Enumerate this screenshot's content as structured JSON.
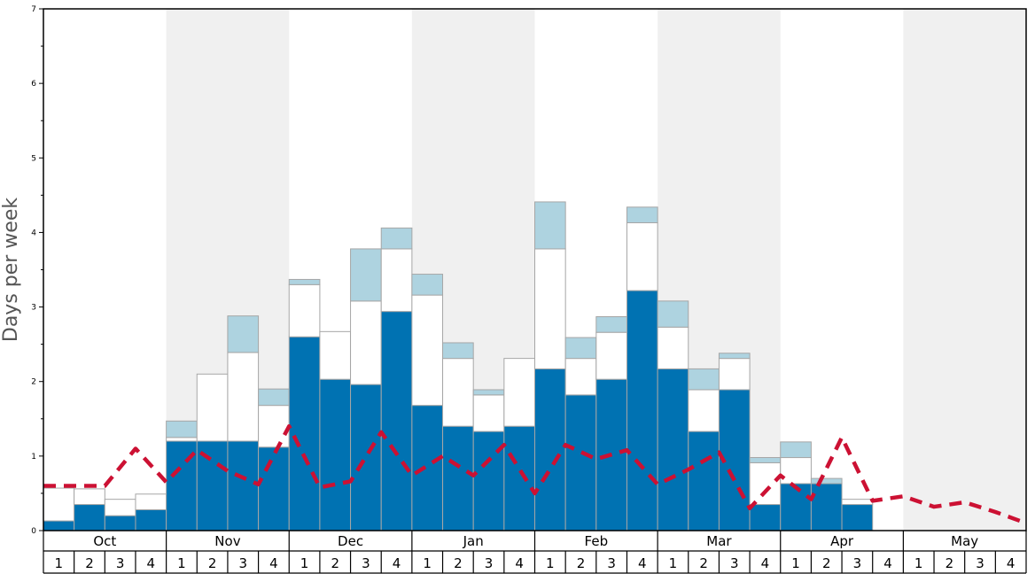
{
  "chart_data": {
    "type": "bar",
    "ylabel": "Days per week",
    "ylim": [
      0,
      7
    ],
    "yticks": [
      "0",
      "1",
      "2",
      "3",
      "4",
      "5",
      "6",
      "7"
    ],
    "months": [
      "Oct",
      "Nov",
      "Dec",
      "Jan",
      "Feb",
      "Mar",
      "Apr",
      "May"
    ],
    "week_labels": [
      "1",
      "2",
      "3",
      "4"
    ],
    "stacked": true,
    "series": [
      {
        "key": "dark",
        "color": "#0072b2",
        "values": [
          0.13,
          0.35,
          0.2,
          0.28,
          1.2,
          1.2,
          1.2,
          1.12,
          2.6,
          2.03,
          1.96,
          2.94,
          1.68,
          1.4,
          1.33,
          1.4,
          2.17,
          1.82,
          2.03,
          3.22,
          2.17,
          1.33,
          1.89,
          0.35,
          0.63,
          0.63,
          0.35,
          0,
          0,
          0,
          0,
          0
        ]
      },
      {
        "key": "white",
        "color": "#ffffff",
        "values": [
          0.44,
          0.21,
          0.22,
          0.21,
          0.05,
          0.9,
          1.19,
          0.56,
          0.7,
          0.64,
          1.12,
          0.84,
          1.48,
          0.91,
          0.49,
          0.91,
          1.61,
          0.49,
          0.63,
          0.91,
          0.56,
          0.56,
          0.42,
          0.56,
          0.35,
          0,
          0.07,
          0,
          0,
          0,
          0,
          0
        ]
      },
      {
        "key": "light",
        "color": "#aed3e0",
        "values": [
          0,
          0,
          0,
          0,
          0.22,
          0,
          0.49,
          0.22,
          0.07,
          0,
          0.7,
          0.28,
          0.28,
          0.21,
          0.07,
          0,
          0.63,
          0.28,
          0.21,
          0.21,
          0.35,
          0.28,
          0.07,
          0.07,
          0.21,
          0.07,
          0,
          0,
          0,
          0,
          0,
          0
        ]
      }
    ],
    "line": {
      "color": "#cc1133",
      "style": "dashed",
      "values": [
        0.6,
        0.6,
        0.6,
        1.1,
        0.65,
        1.08,
        0.8,
        0.62,
        1.4,
        0.58,
        0.66,
        1.32,
        0.74,
        1.0,
        0.74,
        1.15,
        0.5,
        1.15,
        0.96,
        1.08,
        0.62,
        0.82,
        1.05,
        0.3,
        0.74,
        0.42,
        1.25,
        0.4,
        0.46,
        0.32,
        0.38,
        0.25,
        0.1
      ]
    }
  }
}
